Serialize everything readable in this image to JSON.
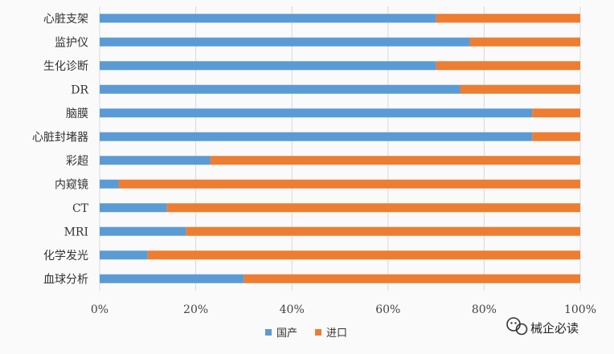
{
  "chart_data": {
    "type": "bar",
    "orientation": "horizontal",
    "stacked": true,
    "categories": [
      "心脏支架",
      "监护仪",
      "生化诊断",
      "DR",
      "脑膜",
      "心脏封堵器",
      "彩超",
      "内窥镜",
      "CT",
      "MRI",
      "化学发光",
      "血球分析"
    ],
    "series": [
      {
        "name": "国产",
        "color": "#5b9bd5",
        "values": [
          70,
          77,
          70,
          75,
          90,
          90,
          23,
          4,
          14,
          18,
          10,
          30
        ]
      },
      {
        "name": "进口",
        "color": "#ed7d31",
        "values": [
          30,
          23,
          30,
          25,
          10,
          10,
          77,
          96,
          86,
          82,
          90,
          70
        ]
      }
    ],
    "x_ticks": [
      "0%",
      "20%",
      "40%",
      "60%",
      "80%",
      "100%"
    ],
    "xlim": [
      0,
      100
    ],
    "grid": true,
    "legend_position": "bottom",
    "title": "",
    "xlabel": "",
    "ylabel": ""
  },
  "watermark": {
    "text": "械企必读",
    "icon": "wechat-icon"
  }
}
